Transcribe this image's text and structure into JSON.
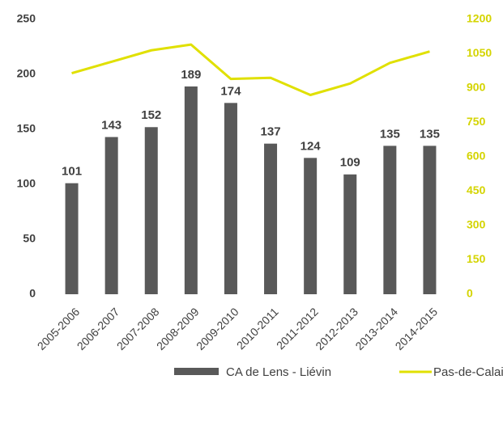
{
  "chart_data": {
    "type": "bar",
    "categories": [
      "2005-2006",
      "2006-2007",
      "2007-2008",
      "2008-2009",
      "2009-2010",
      "2010-2011",
      "2011-2012",
      "2012-2013",
      "2013-2014",
      "2014-2015"
    ],
    "series": [
      {
        "name": "CA de Lens - Liévin",
        "type": "bar",
        "color": "#595959",
        "data_labels": true,
        "values": [
          101,
          143,
          152,
          189,
          174,
          137,
          124,
          109,
          135,
          135
        ]
      },
      {
        "name": "Pas-de-Calais",
        "type": "line",
        "axis": "y2",
        "color": "#e0e000",
        "values": [
          965,
          1015,
          1065,
          1090,
          940,
          945,
          870,
          920,
          1010,
          1060
        ]
      }
    ],
    "ylim": [
      0,
      250
    ],
    "yticks": [
      0,
      50,
      100,
      150,
      200,
      250
    ],
    "y2lim": [
      0,
      1200
    ],
    "y2ticks": [
      0,
      150,
      300,
      450,
      600,
      750,
      900,
      1050,
      1200
    ],
    "legend": "bottom"
  }
}
